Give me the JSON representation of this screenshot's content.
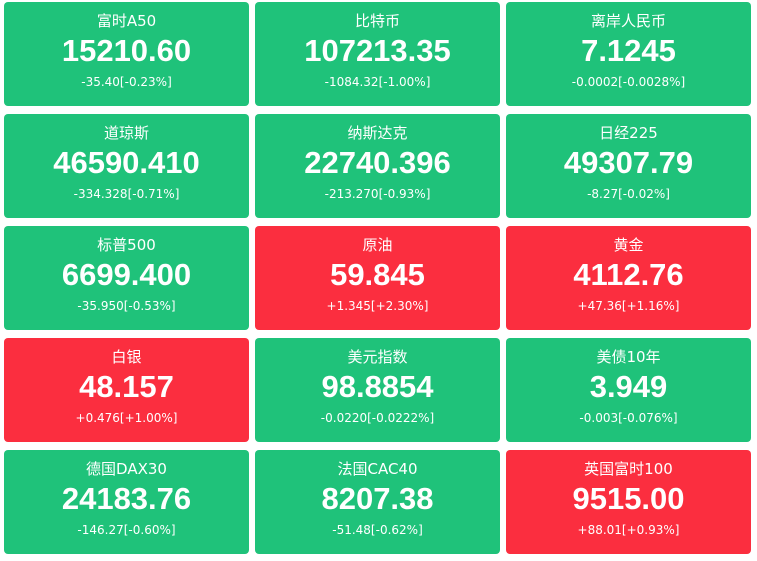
{
  "tiles": [
    {
      "name": "富时A50",
      "value": "15210.60",
      "change": "-35.40[-0.23%]",
      "direction": "down",
      "color": "#1fc27a"
    },
    {
      "name": "比特币",
      "value": "107213.35",
      "change": "-1084.32[-1.00%]",
      "direction": "down",
      "color": "#1fc27a"
    },
    {
      "name": "离岸人民币",
      "value": "7.1245",
      "change": "-0.0002[-0.0028%]",
      "direction": "down",
      "color": "#1fc27a"
    },
    {
      "name": "道琼斯",
      "value": "46590.410",
      "change": "-334.328[-0.71%]",
      "direction": "down",
      "color": "#1fc27a"
    },
    {
      "name": "纳斯达克",
      "value": "22740.396",
      "change": "-213.270[-0.93%]",
      "direction": "down",
      "color": "#1fc27a"
    },
    {
      "name": "日经225",
      "value": "49307.79",
      "change": "-8.27[-0.02%]",
      "direction": "down",
      "color": "#1fc27a"
    },
    {
      "name": "标普500",
      "value": "6699.400",
      "change": "-35.950[-0.53%]",
      "direction": "down",
      "color": "#1fc27a"
    },
    {
      "name": "原油",
      "value": "59.845",
      "change": "+1.345[+2.30%]",
      "direction": "up",
      "color": "#fb2e3f"
    },
    {
      "name": "黄金",
      "value": "4112.76",
      "change": "+47.36[+1.16%]",
      "direction": "up",
      "color": "#fb2e3f"
    },
    {
      "name": "白银",
      "value": "48.157",
      "change": "+0.476[+1.00%]",
      "direction": "up",
      "color": "#fb2e3f"
    },
    {
      "name": "美元指数",
      "value": "98.8854",
      "change": "-0.0220[-0.0222%]",
      "direction": "down",
      "color": "#1fc27a"
    },
    {
      "name": "美债10年",
      "value": "3.949",
      "change": "-0.003[-0.076%]",
      "direction": "down",
      "color": "#1fc27a"
    },
    {
      "name": "德国DAX30",
      "value": "24183.76",
      "change": "-146.27[-0.60%]",
      "direction": "down",
      "color": "#1fc27a"
    },
    {
      "name": "法国CAC40",
      "value": "8207.38",
      "change": "-51.48[-0.62%]",
      "direction": "down",
      "color": "#1fc27a"
    },
    {
      "name": "英国富时100",
      "value": "9515.00",
      "change": "+88.01[+0.93%]",
      "direction": "up",
      "color": "#fb2e3f"
    }
  ]
}
